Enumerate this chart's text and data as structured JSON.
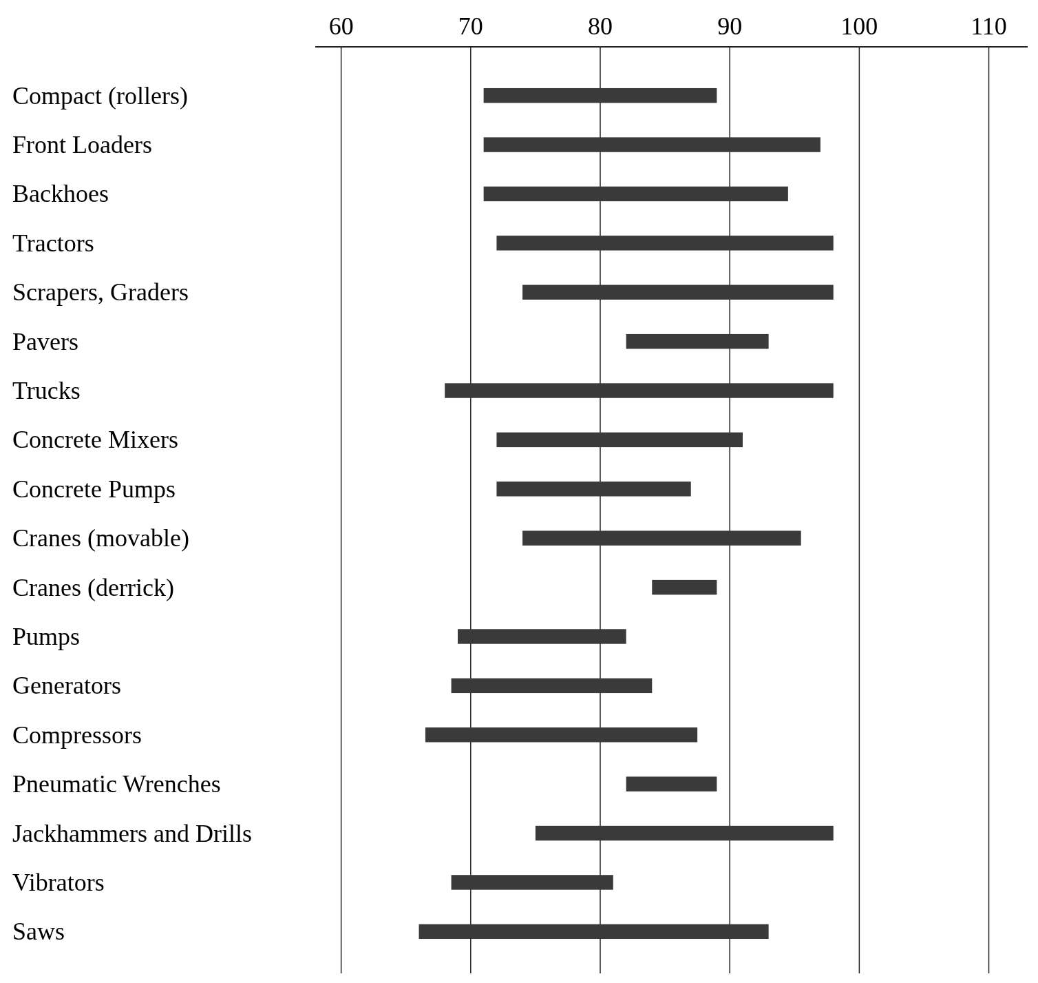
{
  "chart_data": {
    "type": "bar",
    "orientation": "horizontal",
    "categories": [
      "Compact (rollers)",
      "Front Loaders",
      "Backhoes",
      "Tractors",
      "Scrapers, Graders",
      "Pavers",
      "Trucks",
      "Concrete Mixers",
      "Concrete Pumps",
      "Cranes (movable)",
      "Cranes (derrick)",
      "Pumps",
      "Generators",
      "Compressors",
      "Pneumatic Wrenches",
      "Jackhammers and Drills",
      "Vibrators",
      "Saws"
    ],
    "base": [
      71,
      71,
      71,
      72,
      74,
      82,
      68,
      72,
      72,
      74,
      84,
      69,
      68.5,
      66.5,
      82,
      75,
      68.5,
      66
    ],
    "values": [
      18,
      26,
      23.5,
      26,
      24,
      11,
      30,
      19,
      15,
      21.5,
      5,
      13,
      15.5,
      21,
      7,
      23,
      12.5,
      27
    ],
    "color": "#3a3a3a",
    "xlim": [
      58,
      113
    ],
    "xticks": [
      60,
      70,
      80,
      90,
      100,
      110
    ],
    "grid": "x"
  }
}
